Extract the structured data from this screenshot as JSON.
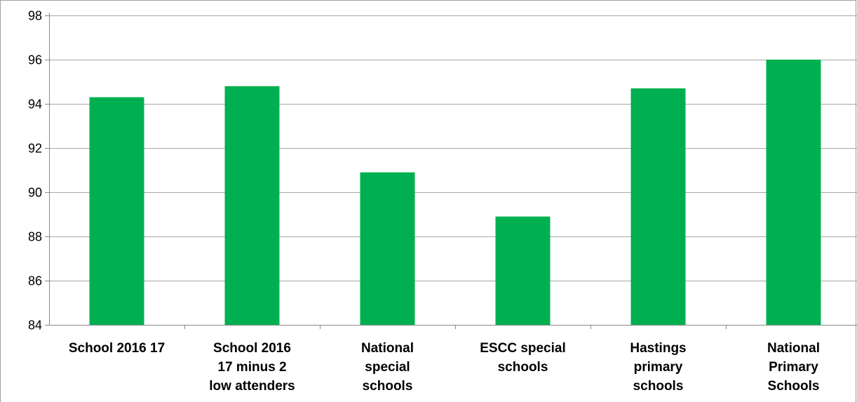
{
  "chart_data": {
    "type": "bar",
    "categories": [
      [
        "School 2016 17"
      ],
      [
        "School  2016",
        "17  minus 2",
        "low attenders"
      ],
      [
        "National",
        "special",
        "schools"
      ],
      [
        "ESCC special",
        "schools"
      ],
      [
        "Hastings",
        "primary",
        "schools"
      ],
      [
        "National",
        "Primary",
        "Schools"
      ]
    ],
    "values": [
      94.3,
      94.8,
      90.9,
      88.9,
      94.7,
      96.0
    ],
    "ylim": [
      84,
      98
    ],
    "yticks": [
      84,
      86,
      88,
      90,
      92,
      94,
      96,
      98
    ],
    "grid": true,
    "legend": "none",
    "title": "",
    "xlabel": "",
    "ylabel": "",
    "colors": {
      "bar": "#00b050",
      "grid": "#a6a6a6",
      "axis": "#888888",
      "frame": "#a0a0a0"
    }
  }
}
